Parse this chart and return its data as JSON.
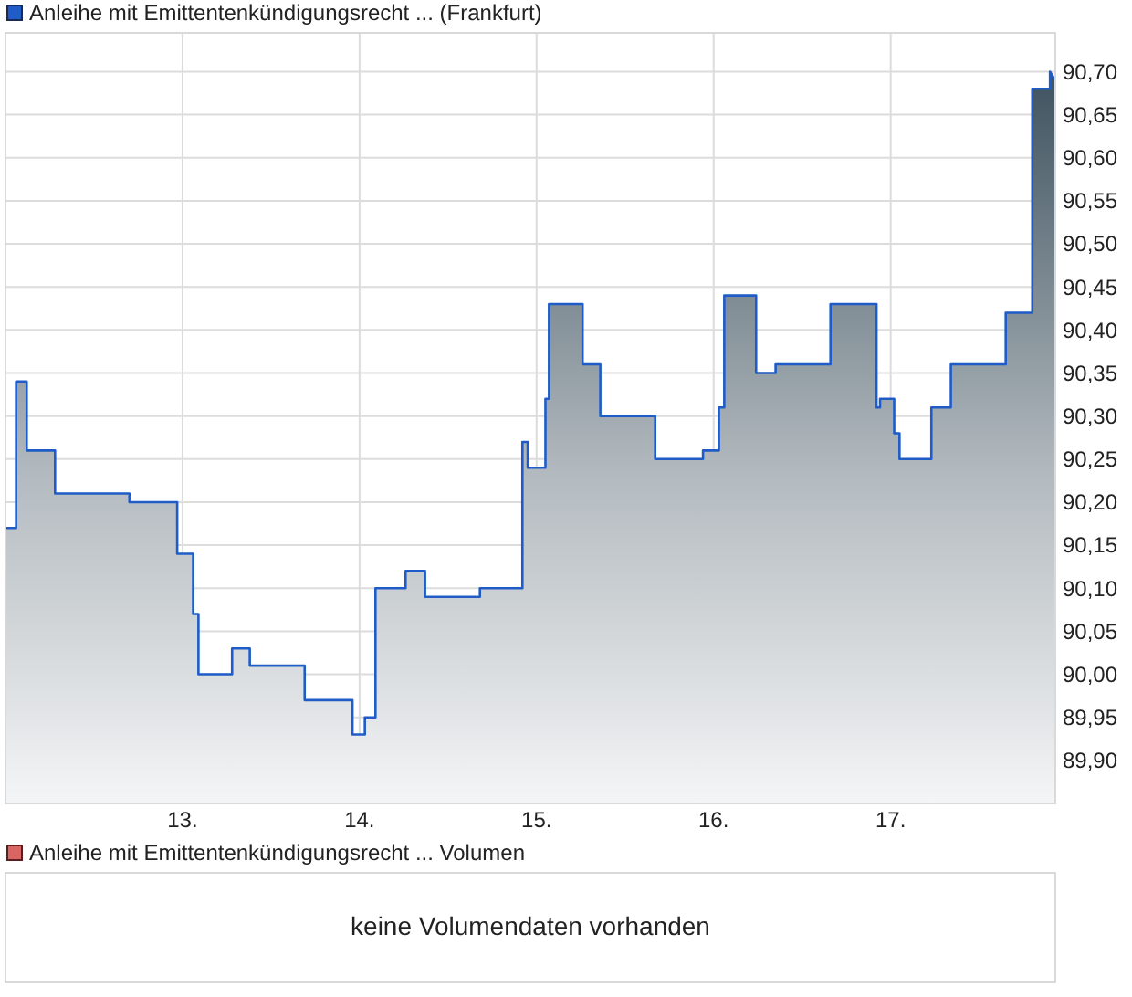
{
  "chart_data": [
    {
      "type": "area",
      "legend": "top left",
      "grid": true,
      "x": [
        12.0,
        12.06,
        12.06,
        12.12,
        12.12,
        12.28,
        12.28,
        12.7,
        12.7,
        12.97,
        12.97,
        13.06,
        13.06,
        13.09,
        13.09,
        13.28,
        13.28,
        13.38,
        13.38,
        13.69,
        13.69,
        13.96,
        13.96,
        14.03,
        14.03,
        14.09,
        14.09,
        14.26,
        14.26,
        14.37,
        14.37,
        14.68,
        14.68,
        14.92,
        14.92,
        14.95,
        14.95,
        15.05,
        15.05,
        15.07,
        15.07,
        15.26,
        15.26,
        15.36,
        15.36,
        15.67,
        15.67,
        15.94,
        15.94,
        16.03,
        16.03,
        16.06,
        16.06,
        16.24,
        16.24,
        16.35,
        16.35,
        16.66,
        16.66,
        16.92,
        16.92,
        16.94,
        16.94,
        17.02,
        17.02,
        17.05,
        17.05,
        17.23,
        17.23,
        17.34,
        17.34,
        17.65,
        17.65,
        17.8,
        17.8,
        17.9,
        17.9,
        17.93
      ],
      "series": [
        {
          "name": "Anleihe mit Emittentenkündigungsrecht ... (Frankfurt)",
          "color": "#1f5cc8",
          "values": [
            90.17,
            90.17,
            90.34,
            90.34,
            90.26,
            90.26,
            90.21,
            90.21,
            90.2,
            90.2,
            90.14,
            90.14,
            90.07,
            90.07,
            90.0,
            90.0,
            90.03,
            90.03,
            90.01,
            90.01,
            89.97,
            89.97,
            89.93,
            89.93,
            89.95,
            89.95,
            90.1,
            90.1,
            90.12,
            90.12,
            90.09,
            90.09,
            90.1,
            90.1,
            90.27,
            90.27,
            90.24,
            90.24,
            90.32,
            90.32,
            90.43,
            90.43,
            90.36,
            90.36,
            90.3,
            90.3,
            90.25,
            90.25,
            90.26,
            90.26,
            90.31,
            90.31,
            90.44,
            90.44,
            90.35,
            90.35,
            90.36,
            90.36,
            90.43,
            90.43,
            90.31,
            90.31,
            90.32,
            90.32,
            90.28,
            90.28,
            90.25,
            90.25,
            90.31,
            90.31,
            90.36,
            90.36,
            90.42,
            90.42,
            90.68,
            90.68,
            90.7,
            90.69
          ]
        }
      ],
      "xlim": [
        12,
        17.93
      ],
      "xticks": [
        {
          "value": 13,
          "label": "13."
        },
        {
          "value": 14,
          "label": "14."
        },
        {
          "value": 15,
          "label": "15."
        },
        {
          "value": 16,
          "label": "16."
        },
        {
          "value": 17,
          "label": "17."
        }
      ],
      "ylim": [
        89.85,
        90.745
      ],
      "yticks": [
        {
          "value": 89.9,
          "label": "89,90"
        },
        {
          "value": 89.95,
          "label": "89,95"
        },
        {
          "value": 90.0,
          "label": "90,00"
        },
        {
          "value": 90.05,
          "label": "90,05"
        },
        {
          "value": 90.1,
          "label": "90,10"
        },
        {
          "value": 90.15,
          "label": "90,15"
        },
        {
          "value": 90.2,
          "label": "90,20"
        },
        {
          "value": 90.25,
          "label": "90,25"
        },
        {
          "value": 90.3,
          "label": "90,30"
        },
        {
          "value": 90.35,
          "label": "90,35"
        },
        {
          "value": 90.4,
          "label": "90,40"
        },
        {
          "value": 90.45,
          "label": "90,45"
        },
        {
          "value": 90.5,
          "label": "90,50"
        },
        {
          "value": 90.55,
          "label": "90,55"
        },
        {
          "value": 90.6,
          "label": "90,60"
        },
        {
          "value": 90.65,
          "label": "90,65"
        },
        {
          "value": 90.7,
          "label": "90,70"
        }
      ]
    },
    {
      "type": "other",
      "title": "Anleihe mit Emittentenkündigungsrecht ... Volumen",
      "annotations": [
        "keine Volumendaten vorhanden"
      ]
    }
  ]
}
